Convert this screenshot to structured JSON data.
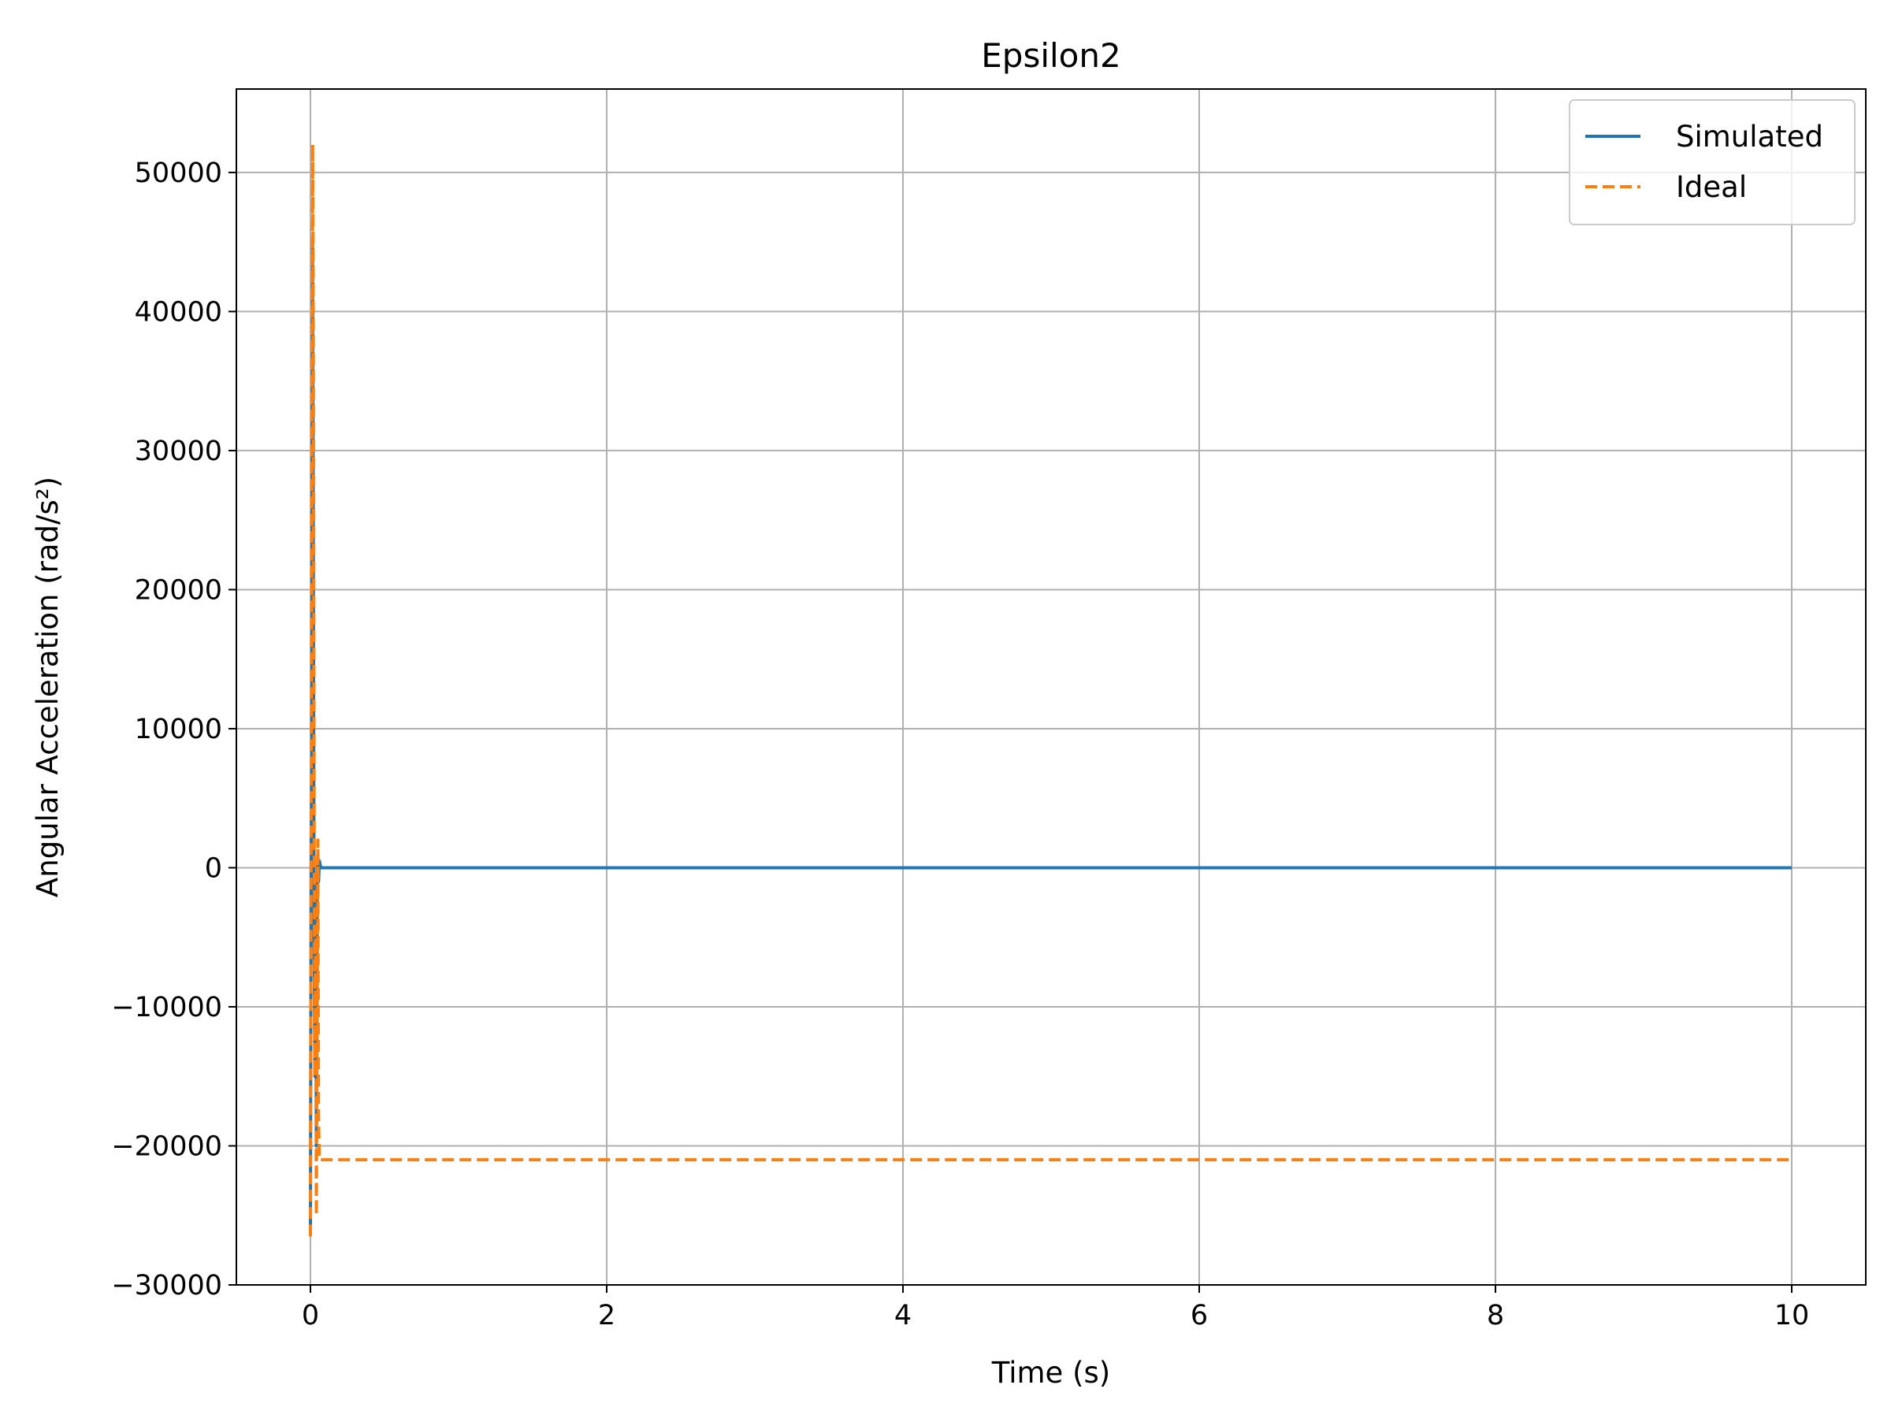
{
  "chart_data": {
    "type": "line",
    "title": "Epsilon2",
    "xlabel": "Time (s)",
    "ylabel": "Angular Acceleration (rad/s²)",
    "xlim": [
      -0.5,
      10.5
    ],
    "ylim": [
      -30000,
      56000
    ],
    "xticks": [
      0,
      2,
      4,
      6,
      8,
      10
    ],
    "xtick_labels": [
      "0",
      "2",
      "4",
      "6",
      "8",
      "10"
    ],
    "yticks": [
      -30000,
      -20000,
      -10000,
      0,
      10000,
      20000,
      30000,
      40000,
      50000
    ],
    "ytick_labels": [
      "−30000",
      "−20000",
      "−10000",
      "0",
      "10000",
      "20000",
      "30000",
      "40000",
      "50000"
    ],
    "grid": true,
    "legend_position": "top-right",
    "series": [
      {
        "name": "Simulated",
        "color": "#1f77b4",
        "style": "solid",
        "x": [
          0.0,
          0.005,
          0.01,
          0.015,
          0.02,
          0.025,
          0.03,
          0.035,
          0.04,
          0.045,
          0.05,
          0.055,
          0.06,
          0.07,
          0.08,
          0.1,
          1,
          2,
          3,
          4,
          5,
          6,
          7,
          8,
          9,
          10
        ],
        "y": [
          -26000,
          2000,
          8000,
          45000,
          20000,
          -5000,
          -15000,
          -3000,
          -20000,
          -2000,
          1000,
          -1000,
          500,
          0,
          0,
          0,
          0,
          0,
          0,
          0,
          0,
          0,
          0,
          0,
          0,
          0
        ]
      },
      {
        "name": "Ideal",
        "color": "#ff7f0e",
        "style": "dashed",
        "x": [
          0.0,
          0.005,
          0.01,
          0.015,
          0.02,
          0.025,
          0.03,
          0.035,
          0.04,
          0.045,
          0.05,
          0.055,
          0.06,
          0.065,
          0.07,
          0.08,
          0.1,
          1,
          2,
          3,
          4,
          5,
          6,
          7,
          8,
          9,
          10
        ],
        "y": [
          -26500,
          5000,
          20000,
          52000,
          35000,
          5000,
          -15000,
          -5000,
          -25000,
          -12000,
          2000,
          -18000,
          -21000,
          -21000,
          -21000,
          -21000,
          -21000,
          -21000,
          -21000,
          -21000,
          -21000,
          -21000,
          -21000,
          -21000,
          -21000,
          -21000,
          -21000
        ]
      }
    ]
  }
}
